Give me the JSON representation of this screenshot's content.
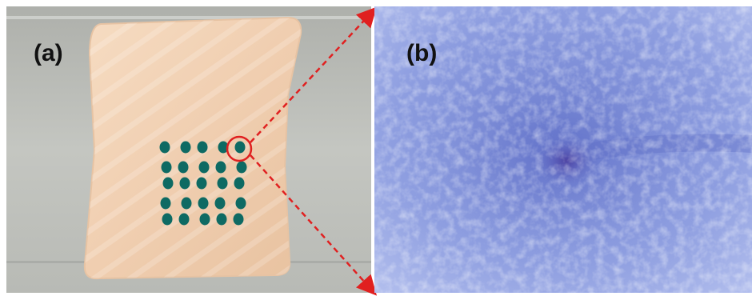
{
  "panels": {
    "a": {
      "label": "(a)"
    },
    "b": {
      "label": "(b)"
    }
  },
  "colors": {
    "background_a": "#b9bbb6",
    "skin": "#f0ceb0",
    "dye_dots": "#0e6a63",
    "highlight_circle": "#e02020",
    "zoom_arrows": "#e02020",
    "microscope_tint": "#7f8fd6",
    "lesion": "#4a3fa0"
  },
  "dot_grid": {
    "rows": 5,
    "cols": 5
  }
}
